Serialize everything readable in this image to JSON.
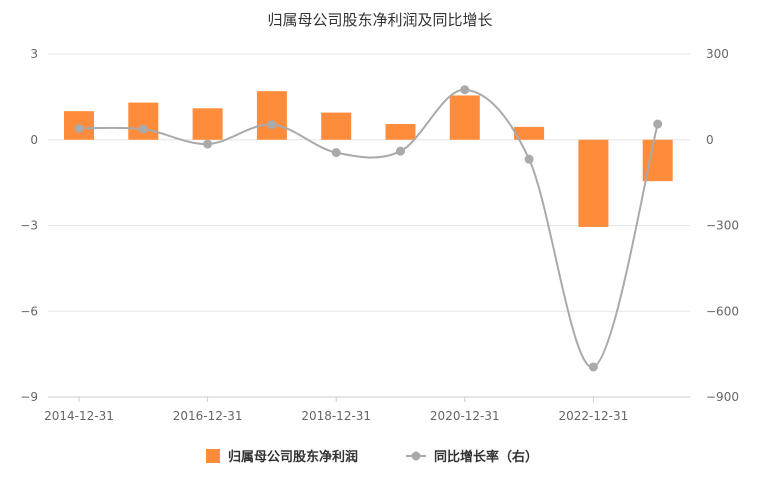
{
  "chart_data": {
    "type": "bar",
    "title": "归属母公司股东净利润及同比增长",
    "x_tick_labels": [
      "2014-12-31",
      "2016-12-31",
      "2018-12-31",
      "2020-12-31",
      "2022-12-31"
    ],
    "x_tick_indices": [
      0,
      2,
      4,
      6,
      8
    ],
    "y_left": {
      "range": [
        -9,
        3
      ],
      "ticks": [
        3,
        0,
        -3,
        -6,
        -9
      ],
      "tick_labels": [
        "3",
        "0",
        "−3",
        "−6",
        "−9"
      ]
    },
    "y_right": {
      "range": [
        -900,
        300
      ],
      "ticks": [
        300,
        0,
        -300,
        -600,
        -900
      ],
      "tick_labels": [
        "300",
        "0",
        "−300",
        "−600",
        "−900"
      ]
    },
    "grid": true,
    "legend_position": "bottom",
    "series": [
      {
        "name": "归属母公司股东净利润",
        "type": "bar",
        "axis": "left",
        "color": "#ff8c3a",
        "values": [
          1.0,
          1.3,
          1.1,
          1.7,
          0.95,
          0.55,
          1.55,
          0.45,
          -3.05,
          -1.45
        ]
      },
      {
        "name": "同比增长率（右）",
        "type": "line",
        "axis": "right",
        "color": "#aaaaaa",
        "values": [
          40,
          37,
          -15,
          53,
          -45,
          -40,
          175,
          -68,
          -795,
          55
        ]
      }
    ]
  }
}
